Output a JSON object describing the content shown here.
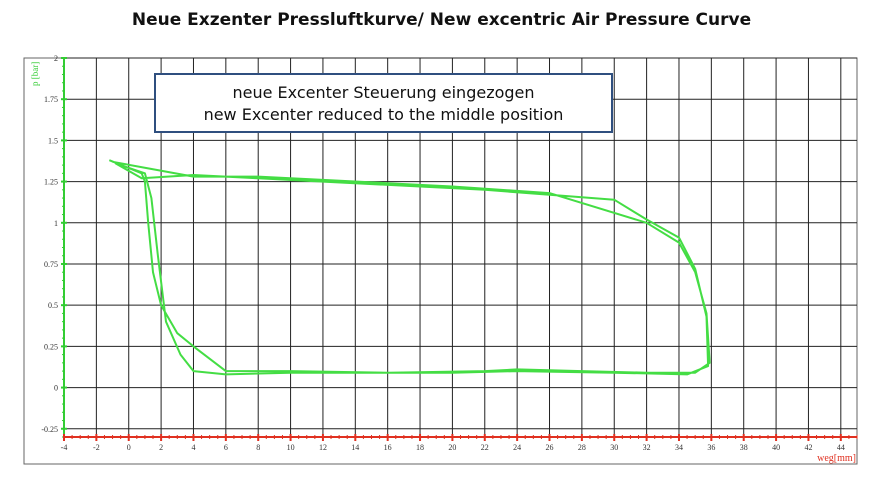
{
  "title": "Neue Exzenter Pressluftkurve/ New excentric Air Pressure Curve",
  "chart_data": {
    "type": "line",
    "xlabel": "weg[mm]",
    "ylabel": "p [bar]",
    "xlim": [
      -4,
      45
    ],
    "ylim": [
      -0.3,
      2.0
    ],
    "xticks": [
      -4,
      -2,
      0,
      2,
      4,
      6,
      8,
      10,
      12,
      14,
      16,
      18,
      20,
      22,
      24,
      26,
      28,
      30,
      32,
      34,
      36,
      38,
      40,
      42,
      44
    ],
    "yticks": [
      -0.25,
      0,
      0.25,
      0.5,
      0.75,
      1,
      1.25,
      1.5,
      1.75,
      2
    ],
    "ytick_labels": [
      "-0.25",
      "0",
      "0.25",
      "0.5",
      "0.75",
      "1",
      "1.25",
      "1.5",
      "1.75",
      "2"
    ],
    "grid": true,
    "line_color": "#44dd44",
    "axis_color": "#33cc33",
    "xaxis_color": "#e03020",
    "annotation": {
      "line1": "neue Excenter Steuerung eingezogen",
      "line2": "new Excenter reduced to the middle position"
    },
    "series": [
      {
        "x": [
          -1.2,
          0.8,
          1.0,
          1.2,
          1.5,
          2.0,
          3.0,
          4.0,
          6.0,
          10,
          16,
          20,
          24,
          30,
          34.5,
          35.8,
          35.7,
          35.0,
          34.0,
          32.0,
          30.0,
          26,
          22,
          18,
          12,
          8,
          4,
          0.8,
          -0.8,
          1.0,
          1.4,
          1.8,
          2.3,
          3.2,
          4.0,
          6.0,
          10,
          16,
          22,
          24,
          28,
          32,
          35.0,
          35.9,
          35.7,
          35.0,
          34.0,
          32.0,
          26,
          20,
          16,
          12,
          8,
          4,
          1.2,
          -1.0
        ],
        "y": [
          1.38,
          1.3,
          1.25,
          1.0,
          0.7,
          0.5,
          0.33,
          0.25,
          0.1,
          0.1,
          0.09,
          0.09,
          0.1,
          0.09,
          0.08,
          0.13,
          0.43,
          0.72,
          0.91,
          1.02,
          1.14,
          1.17,
          1.2,
          1.22,
          1.25,
          1.27,
          1.29,
          1.27,
          1.36,
          1.3,
          1.15,
          0.8,
          0.4,
          0.2,
          0.1,
          0.08,
          0.09,
          0.09,
          0.1,
          0.11,
          0.1,
          0.09,
          0.09,
          0.15,
          0.45,
          0.7,
          0.88,
          1.0,
          1.18,
          1.22,
          1.24,
          1.26,
          1.28,
          1.28,
          1.33,
          1.37
        ]
      }
    ]
  }
}
